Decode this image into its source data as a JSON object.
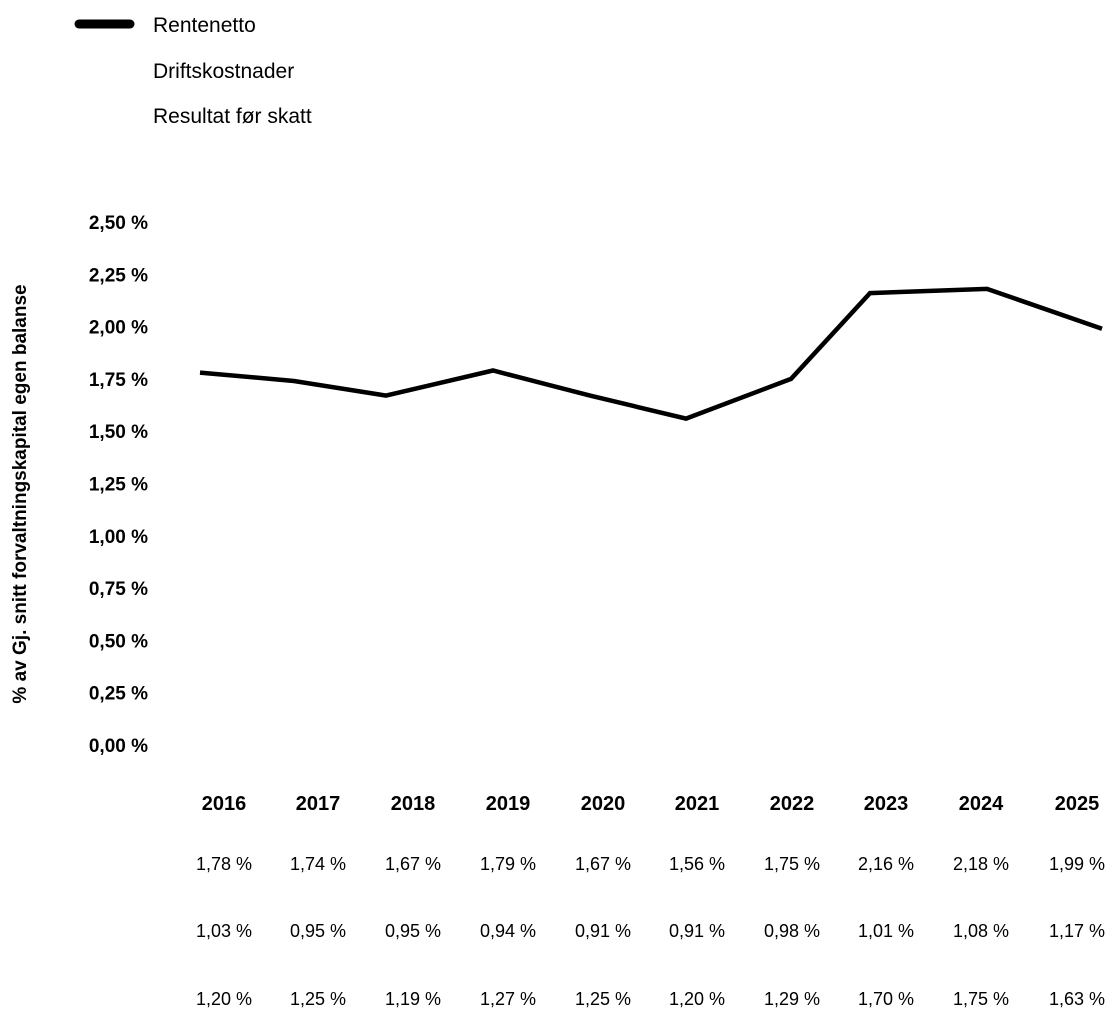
{
  "chart_data": {
    "type": "line",
    "title": "",
    "xlabel": "",
    "ylabel": "% av Gj. snitt forvaltningskapital egen balanse",
    "ylim": [
      0,
      2.5
    ],
    "grid": false,
    "legend_position": "top-left",
    "categories": [
      "2016",
      "2017",
      "2018",
      "2019",
      "2020",
      "2021",
      "2022",
      "2023",
      "2024",
      "2025"
    ],
    "y_ticks": [
      "0,00 %",
      "0,25 %",
      "0,50 %",
      "0,75 %",
      "1,00 %",
      "1,25 %",
      "1,50 %",
      "1,75 %",
      "2,00 %",
      "2,25 %",
      "2,50 %"
    ],
    "series": [
      {
        "name": "Rentenetto",
        "values": [
          1.78,
          1.74,
          1.67,
          1.79,
          1.67,
          1.56,
          1.75,
          2.16,
          2.18,
          1.99
        ],
        "labels": [
          "1,78 %",
          "1,74 %",
          "1,67 %",
          "1,79 %",
          "1,67 %",
          "1,56 %",
          "1,75 %",
          "2,16 %",
          "2,18 %",
          "1,99 %"
        ],
        "visible": true,
        "color": "#000000"
      },
      {
        "name": "Driftskostnader",
        "values": [
          1.03,
          0.95,
          0.95,
          0.94,
          0.91,
          0.91,
          0.98,
          1.01,
          1.08,
          1.17
        ],
        "labels": [
          "1,03 %",
          "0,95 %",
          "0,95 %",
          "0,94 %",
          "0,91 %",
          "0,91 %",
          "0,98 %",
          "1,01 %",
          "1,08 %",
          "1,17 %"
        ],
        "visible": false,
        "color": "#000000"
      },
      {
        "name": "Resultat før skatt",
        "values": [
          1.2,
          1.25,
          1.19,
          1.27,
          1.25,
          1.2,
          1.29,
          1.7,
          1.75,
          1.63
        ],
        "labels": [
          "1,20 %",
          "1,25 %",
          "1,19 %",
          "1,27 %",
          "1,25 %",
          "1,20 %",
          "1,29 %",
          "1,70 %",
          "1,75 %",
          "1,63 %"
        ],
        "visible": false,
        "color": "#000000"
      }
    ]
  }
}
